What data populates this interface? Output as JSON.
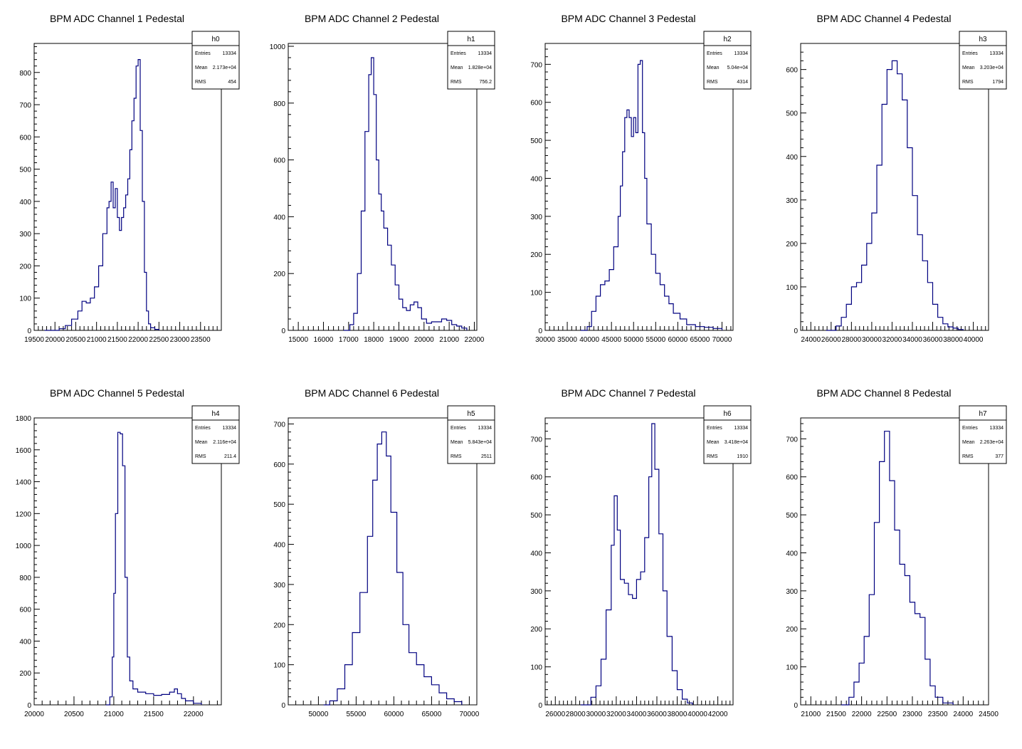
{
  "chart_data": [
    {
      "type": "histogram",
      "title": "BPM ADC Channel 1 Pedestal",
      "stats": {
        "name": "h0",
        "labels": [
          "Entries",
          "Mean",
          "RMS"
        ],
        "values": [
          "13334",
          "2.173e+04",
          "454"
        ]
      },
      "xlim": [
        19500,
        24000
      ],
      "ylim": [
        0,
        890
      ],
      "xticks": [
        19500,
        20000,
        20500,
        21000,
        21500,
        22000,
        22500,
        23000,
        23500
      ],
      "xtick_labels": [
        "19500",
        "20000",
        "20500",
        "21000",
        "21500",
        "22000",
        "22500",
        "23000",
        "23500"
      ],
      "yticks": [
        0,
        100,
        200,
        300,
        400,
        500,
        600,
        700,
        800
      ],
      "ytick_labels": [
        "0",
        "100",
        "200",
        "300",
        "400",
        "500",
        "600",
        "700",
        "800"
      ],
      "x": [
        19750,
        20100,
        20250,
        20400,
        20550,
        20650,
        20750,
        20850,
        20950,
        21050,
        21150,
        21250,
        21300,
        21350,
        21400,
        21450,
        21500,
        21550,
        21600,
        21650,
        21700,
        21750,
        21800,
        21850,
        21900,
        21950,
        22000,
        22050,
        22100,
        22150,
        22200,
        22250,
        22300,
        22400,
        22500
      ],
      "values": [
        0,
        5,
        15,
        35,
        60,
        90,
        85,
        100,
        135,
        200,
        300,
        380,
        400,
        460,
        380,
        440,
        350,
        310,
        350,
        380,
        420,
        470,
        560,
        650,
        720,
        820,
        840,
        620,
        400,
        180,
        60,
        20,
        8,
        3,
        0
      ]
    },
    {
      "type": "histogram",
      "title": "BPM ADC Channel 2 Pedestal",
      "stats": {
        "name": "h1",
        "labels": [
          "Entries",
          "Mean",
          "RMS"
        ],
        "values": [
          "13334",
          "1.828e+04",
          "756.2"
        ]
      },
      "xlim": [
        14600,
        22100
      ],
      "ylim": [
        0,
        1010
      ],
      "xticks": [
        15000,
        16000,
        17000,
        18000,
        19000,
        20000,
        21000,
        22000
      ],
      "xtick_labels": [
        "15000",
        "16000",
        "17000",
        "18000",
        "19000",
        "20000",
        "21000",
        "22000"
      ],
      "yticks": [
        0,
        200,
        400,
        600,
        800,
        1000
      ],
      "ytick_labels": [
        "0",
        "200",
        "400",
        "600",
        "800",
        "1000"
      ],
      "x": [
        16800,
        17050,
        17200,
        17350,
        17500,
        17650,
        17800,
        17900,
        18000,
        18100,
        18200,
        18300,
        18400,
        18550,
        18700,
        18850,
        19000,
        19150,
        19300,
        19450,
        19600,
        19750,
        19900,
        20100,
        20300,
        20500,
        20700,
        20900,
        21100,
        21300,
        21500,
        21700
      ],
      "values": [
        0,
        20,
        60,
        200,
        420,
        700,
        900,
        960,
        830,
        600,
        480,
        420,
        360,
        300,
        230,
        160,
        110,
        80,
        70,
        90,
        100,
        80,
        40,
        25,
        30,
        30,
        40,
        35,
        20,
        15,
        8,
        0
      ]
    },
    {
      "type": "histogram",
      "title": "BPM ADC Channel 3 Pedestal",
      "stats": {
        "name": "h2",
        "labels": [
          "Entries",
          "Mean",
          "RMS"
        ],
        "values": [
          "13334",
          "5.04e+04",
          "4314"
        ]
      },
      "xlim": [
        30000,
        72500
      ],
      "ylim": [
        0,
        755
      ],
      "xticks": [
        30000,
        35000,
        40000,
        45000,
        50000,
        55000,
        60000,
        65000,
        70000
      ],
      "xtick_labels": [
        "30000",
        "35000",
        "40000",
        "45000",
        "50000",
        "55000",
        "60000",
        "65000",
        "70000"
      ],
      "yticks": [
        0,
        100,
        200,
        300,
        400,
        500,
        600,
        700
      ],
      "ytick_labels": [
        "0",
        "100",
        "200",
        "300",
        "400",
        "500",
        "600",
        "700"
      ],
      "x": [
        38000,
        39500,
        40500,
        41500,
        42500,
        43500,
        44500,
        45500,
        46500,
        47000,
        47500,
        48000,
        48500,
        49000,
        49500,
        50000,
        50500,
        51000,
        51500,
        52000,
        52500,
        53000,
        54000,
        55000,
        56000,
        57000,
        58000,
        59000,
        60500,
        62000,
        64000,
        66000,
        68000,
        70000
      ],
      "values": [
        0,
        10,
        50,
        90,
        120,
        130,
        160,
        220,
        300,
        380,
        470,
        560,
        580,
        560,
        510,
        560,
        520,
        700,
        710,
        520,
        400,
        280,
        200,
        150,
        120,
        90,
        70,
        45,
        30,
        15,
        10,
        8,
        5,
        0
      ]
    },
    {
      "type": "histogram",
      "title": "BPM ADC Channel 4 Pedestal",
      "stats": {
        "name": "h3",
        "labels": [
          "Entries",
          "Mean",
          "RMS"
        ],
        "values": [
          "13334",
          "3.203e+04",
          "1794"
        ]
      },
      "xlim": [
        23000,
        41500
      ],
      "ylim": [
        0,
        660
      ],
      "xticks": [
        24000,
        26000,
        28000,
        30000,
        32000,
        34000,
        36000,
        38000,
        40000
      ],
      "xtick_labels": [
        "24000",
        "26000",
        "28000",
        "30000",
        "32000",
        "34000",
        "36000",
        "38000",
        "40000"
      ],
      "yticks": [
        0,
        100,
        200,
        300,
        400,
        500,
        600
      ],
      "ytick_labels": [
        "0",
        "100",
        "200",
        "300",
        "400",
        "500",
        "600"
      ],
      "x": [
        25500,
        26500,
        27000,
        27500,
        28000,
        28500,
        29000,
        29500,
        30000,
        30500,
        31000,
        31500,
        32000,
        32500,
        33000,
        33500,
        34000,
        34500,
        35000,
        35500,
        36000,
        36500,
        37000,
        37500,
        38000,
        38500,
        39000
      ],
      "values": [
        0,
        10,
        30,
        60,
        100,
        110,
        150,
        200,
        270,
        380,
        520,
        600,
        620,
        590,
        530,
        420,
        310,
        220,
        160,
        110,
        60,
        30,
        15,
        8,
        5,
        2,
        0
      ]
    },
    {
      "type": "histogram",
      "title": "BPM ADC Channel 5 Pedestal",
      "stats": {
        "name": "h4",
        "labels": [
          "Entries",
          "Mean",
          "RMS"
        ],
        "values": [
          "13334",
          "2.116e+04",
          "211.4"
        ]
      },
      "xlim": [
        20000,
        22350
      ],
      "ylim": [
        0,
        1800
      ],
      "xticks": [
        20000,
        20500,
        21000,
        21500,
        22000
      ],
      "xtick_labels": [
        "20000",
        "20500",
        "21000",
        "21500",
        "22000"
      ],
      "yticks": [
        0,
        200,
        400,
        600,
        800,
        1000,
        1200,
        1400,
        1600,
        1800
      ],
      "ytick_labels": [
        "0",
        "200",
        "400",
        "600",
        "800",
        "1000",
        "1200",
        "1400",
        "1600",
        "1800"
      ],
      "x": [
        20900,
        20950,
        20980,
        21000,
        21020,
        21050,
        21080,
        21110,
        21140,
        21170,
        21200,
        21240,
        21300,
        21400,
        21500,
        21600,
        21700,
        21760,
        21800,
        21850,
        21900,
        22000,
        22100
      ],
      "values": [
        0,
        50,
        300,
        700,
        1200,
        1710,
        1700,
        1500,
        800,
        300,
        150,
        100,
        80,
        70,
        60,
        65,
        80,
        100,
        70,
        40,
        25,
        10,
        0
      ]
    },
    {
      "type": "histogram",
      "title": "BPM ADC Channel 6 Pedestal",
      "stats": {
        "name": "h5",
        "labels": [
          "Entries",
          "Mean",
          "RMS"
        ],
        "values": [
          "13334",
          "5.843e+04",
          "2511"
        ]
      },
      "xlim": [
        46000,
        71000
      ],
      "ylim": [
        0,
        715
      ],
      "xticks": [
        50000,
        55000,
        60000,
        65000,
        70000
      ],
      "xtick_labels": [
        "50000",
        "55000",
        "60000",
        "65000",
        "70000"
      ],
      "yticks": [
        0,
        100,
        200,
        300,
        400,
        500,
        600,
        700
      ],
      "ytick_labels": [
        "0",
        "100",
        "200",
        "300",
        "400",
        "500",
        "600",
        "700"
      ],
      "x": [
        50700,
        51500,
        52500,
        53500,
        54500,
        55500,
        56500,
        57200,
        57800,
        58400,
        59000,
        59600,
        60400,
        61200,
        62000,
        63000,
        64000,
        65000,
        66000,
        67000,
        68000,
        69000
      ],
      "values": [
        0,
        10,
        40,
        100,
        180,
        280,
        420,
        560,
        650,
        680,
        620,
        480,
        330,
        200,
        130,
        100,
        70,
        50,
        30,
        15,
        8,
        0
      ]
    },
    {
      "type": "histogram",
      "title": "BPM ADC Channel 7 Pedestal",
      "stats": {
        "name": "h6",
        "labels": [
          "Entries",
          "Mean",
          "RMS"
        ],
        "values": [
          "13334",
          "3.418e+04",
          "1910"
        ]
      },
      "xlim": [
        25000,
        43500
      ],
      "ylim": [
        0,
        755
      ],
      "xticks": [
        26000,
        28000,
        30000,
        32000,
        34000,
        36000,
        38000,
        40000,
        42000
      ],
      "xtick_labels": [
        "26000",
        "28000",
        "30000",
        "32000",
        "34000",
        "36000",
        "38000",
        "40000",
        "42000"
      ],
      "yticks": [
        0,
        100,
        200,
        300,
        400,
        500,
        600,
        700
      ],
      "ytick_labels": [
        "0",
        "100",
        "200",
        "300",
        "400",
        "500",
        "600",
        "700"
      ],
      "x": [
        28500,
        29500,
        30000,
        30500,
        31000,
        31500,
        31800,
        32100,
        32400,
        32800,
        33200,
        33600,
        34000,
        34400,
        34800,
        35200,
        35500,
        35800,
        36200,
        36600,
        37000,
        37500,
        38000,
        38500,
        39000,
        39500
      ],
      "values": [
        0,
        20,
        50,
        120,
        250,
        420,
        550,
        460,
        330,
        320,
        290,
        280,
        330,
        350,
        440,
        600,
        740,
        620,
        450,
        300,
        180,
        90,
        40,
        15,
        5,
        0
      ]
    },
    {
      "type": "histogram",
      "title": "BPM ADC Channel 8 Pedestal",
      "stats": {
        "name": "h7",
        "labels": [
          "Entries",
          "Mean",
          "RMS"
        ],
        "values": [
          "13334",
          "2.263e+04",
          "377"
        ]
      },
      "xlim": [
        20800,
        24500
      ],
      "ylim": [
        0,
        755
      ],
      "xticks": [
        21000,
        21500,
        22000,
        22500,
        23000,
        23500,
        24000,
        24500
      ],
      "xtick_labels": [
        "21000",
        "21500",
        "22000",
        "22500",
        "23000",
        "23500",
        "24000",
        "24500"
      ],
      "yticks": [
        0,
        100,
        200,
        300,
        400,
        500,
        600,
        700
      ],
      "ytick_labels": [
        "0",
        "100",
        "200",
        "300",
        "400",
        "500",
        "600",
        "700"
      ],
      "x": [
        21600,
        21750,
        21850,
        21950,
        22050,
        22150,
        22250,
        22350,
        22450,
        22550,
        22650,
        22750,
        22850,
        22950,
        23050,
        23150,
        23250,
        23350,
        23450,
        23600,
        23800
      ],
      "values": [
        0,
        20,
        60,
        110,
        180,
        290,
        480,
        640,
        720,
        590,
        460,
        370,
        340,
        270,
        240,
        230,
        120,
        50,
        20,
        5,
        0
      ]
    }
  ]
}
